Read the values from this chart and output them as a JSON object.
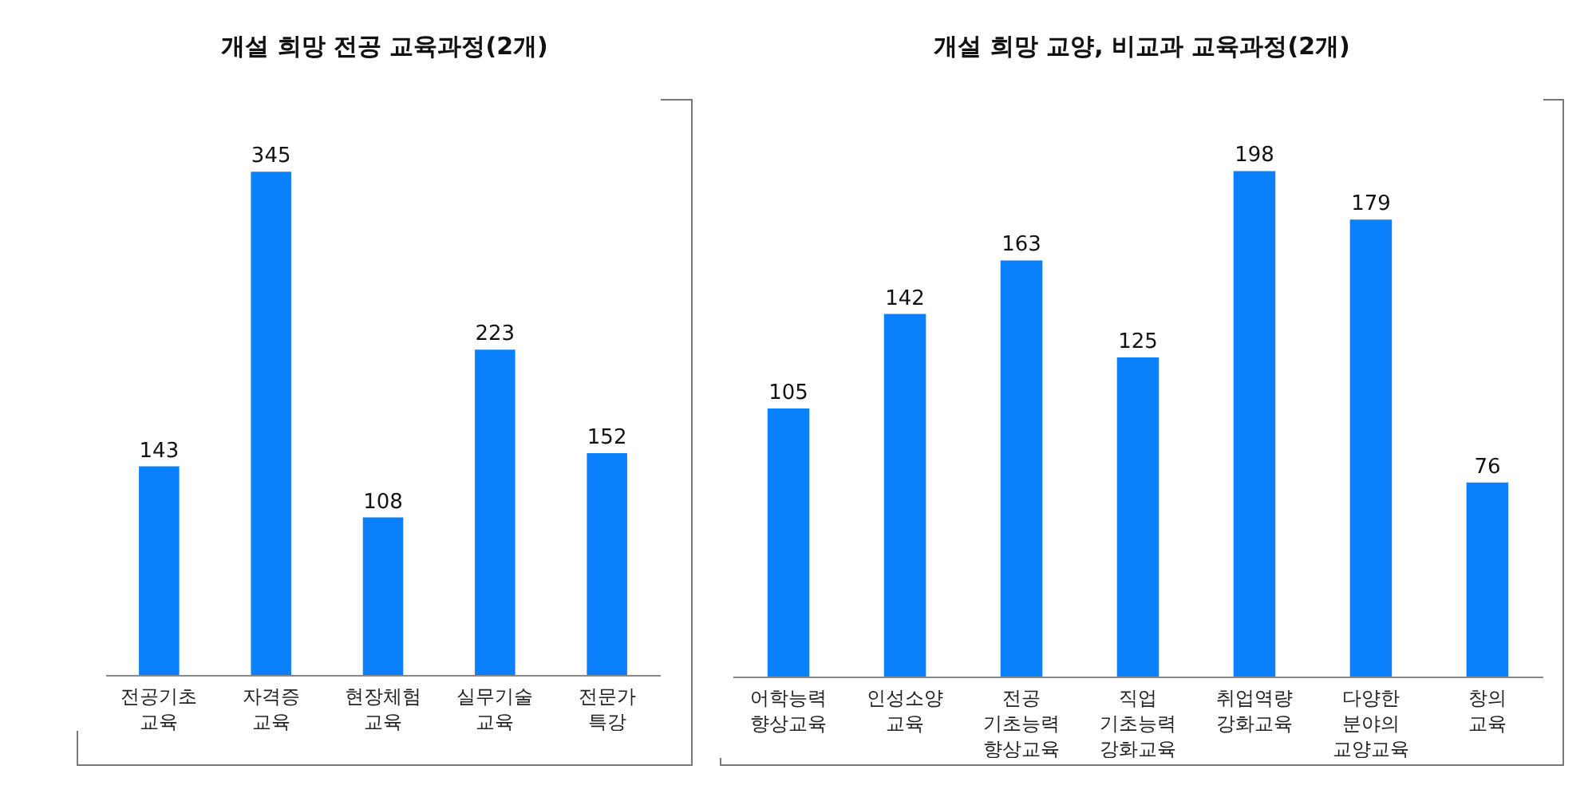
{
  "chart_data": [
    {
      "type": "bar",
      "title": "개설 희망 전공 교육과정(2개)",
      "categories": [
        "전공기초\n교육",
        "자격증\n교육",
        "현장체험\n교육",
        "실무기술\n교육",
        "전문가\n특강"
      ],
      "values": [
        143,
        345,
        108,
        223,
        152
      ],
      "color": "#0a80fb",
      "data_labels": true,
      "tick_labels": "x"
    },
    {
      "type": "bar",
      "title": "개설 희망 교양, 비교과 교육과정(2개)",
      "categories": [
        "어학능력\n향상교육",
        "인성소양\n교육",
        "전공\n기초능력\n향상교육",
        "직업\n기초능력\n강화교육",
        "취업역량\n강화교육",
        "다양한\n분야의\n교양교육",
        "창의\n교육"
      ],
      "values": [
        105,
        142,
        163,
        125,
        198,
        179,
        76
      ],
      "color": "#0a80fb",
      "data_labels": true,
      "tick_labels": "x"
    }
  ]
}
